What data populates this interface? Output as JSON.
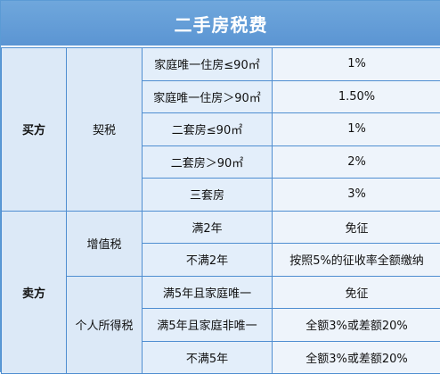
{
  "title": "二手房税费",
  "buyer": {
    "party_label": "买方",
    "tax_name": "契税",
    "rows": [
      {
        "condition": "家庭唯一住房≤90㎡",
        "rate": "1%"
      },
      {
        "condition": "家庭唯一住房＞90㎡",
        "rate": "1.50%"
      },
      {
        "condition": "二套房≤90㎡",
        "rate": "1%"
      },
      {
        "condition": "二套房＞90㎡",
        "rate": "2%"
      },
      {
        "condition": "三套房",
        "rate": "3%"
      }
    ]
  },
  "seller": {
    "party_label": "卖方",
    "vat": {
      "tax_name": "增值税",
      "rows": [
        {
          "condition": "满2年",
          "rate": "免征"
        },
        {
          "condition": "不满2年",
          "rate": "按照5%的征收率全额缴纳"
        }
      ]
    },
    "income_tax": {
      "tax_name": "个人所得税",
      "rows": [
        {
          "condition": "满5年且家庭唯一",
          "rate": "免征"
        },
        {
          "condition": "满5年且家庭非唯一",
          "rate": "全额3%或差额20%"
        },
        {
          "condition": "不满5年",
          "rate": "全额3%或差额20%"
        }
      ]
    }
  }
}
